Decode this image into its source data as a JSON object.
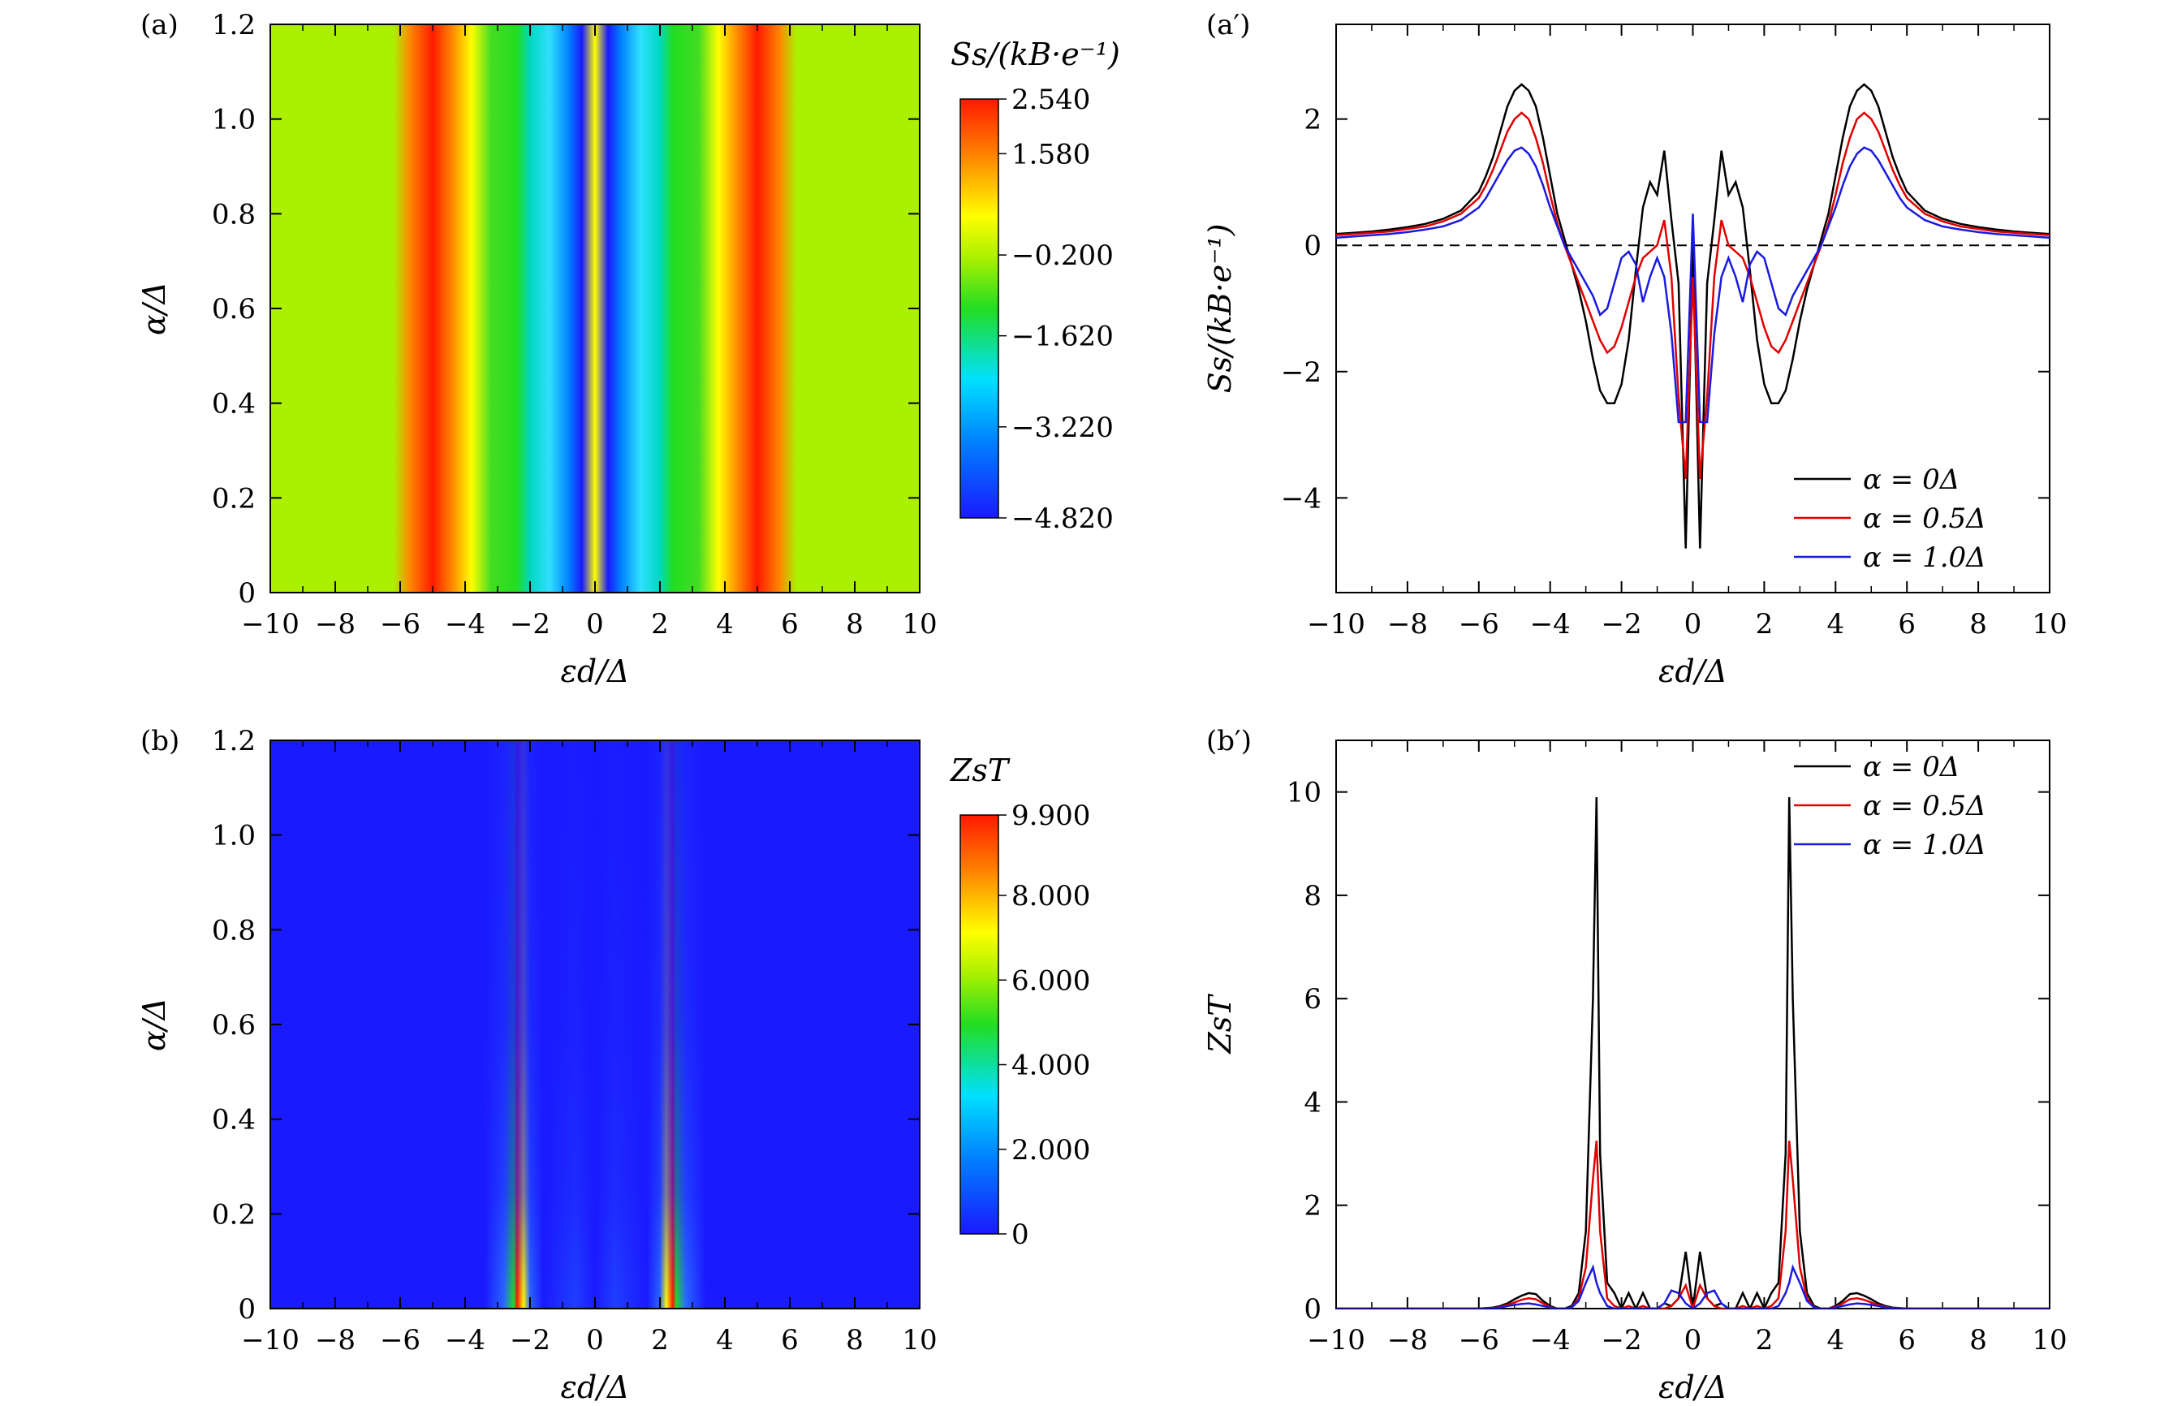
{
  "chart_data": [
    {
      "id": "a",
      "type": "heatmap",
      "panel_label": "(a)",
      "xlabel": "εd/Δ",
      "ylabel": "α/Δ",
      "colorbar_label": "Ss/(kB·e⁻¹)",
      "x_ticks": [
        "−10",
        "−8",
        "−6",
        "−4",
        "−2",
        "0",
        "2",
        "4",
        "6",
        "8",
        "10"
      ],
      "y_ticks": [
        "0",
        "0.2",
        "0.4",
        "0.6",
        "0.8",
        "1.0",
        "1.2"
      ],
      "xlim": [
        -10,
        10
      ],
      "ylim": [
        0,
        1.2
      ],
      "colorbar_ticks": [
        "2.540",
        "1.580",
        "−0.200",
        "−1.620",
        "−3.220",
        "−4.820"
      ],
      "colorbar_range": [
        -4.82,
        2.54
      ],
      "colormap": [
        "#1a1aff",
        "#00e0ff",
        "#22dd22",
        "#aaf000",
        "#ffff00",
        "#ff8800",
        "#ff1a00"
      ]
    },
    {
      "id": "a_prime",
      "type": "line",
      "panel_label": "(a′)",
      "xlabel": "εd/Δ",
      "ylabel": "Ss/(kB·e⁻¹)",
      "x_ticks": [
        "−10",
        "−8",
        "−6",
        "−4",
        "−2",
        "0",
        "2",
        "4",
        "6",
        "8",
        "10"
      ],
      "y_ticks": [
        "−4",
        "−2",
        "0",
        "2"
      ],
      "xlim": [
        -10,
        10
      ],
      "ylim": [
        -5.5,
        3.5
      ],
      "reference_line": {
        "y": 0,
        "style": "dashed"
      },
      "legend_position": "bottom-right",
      "x": [
        0,
        0.2,
        0.4,
        0.6,
        0.8,
        1.0,
        1.2,
        1.4,
        1.6,
        1.8,
        2.0,
        2.2,
        2.4,
        2.6,
        2.8,
        3.0,
        3.2,
        3.4,
        3.6,
        3.8,
        4.0,
        4.2,
        4.4,
        4.6,
        4.8,
        5.0,
        5.2,
        5.4,
        5.6,
        5.8,
        6.0,
        6.5,
        7.0,
        7.5,
        8.0,
        8.5,
        9.0,
        9.5,
        10.0
      ],
      "series": [
        {
          "name": "α = 0Δ",
          "color": "#000000",
          "values": [
            0.0,
            -4.8,
            -0.6,
            0.4,
            1.5,
            0.8,
            1.0,
            0.6,
            -0.4,
            -1.5,
            -2.2,
            -2.5,
            -2.5,
            -2.3,
            -1.8,
            -1.2,
            -0.7,
            -0.3,
            0.1,
            0.5,
            1.1,
            1.7,
            2.2,
            2.45,
            2.55,
            2.45,
            2.2,
            1.8,
            1.4,
            1.1,
            0.85,
            0.55,
            0.42,
            0.34,
            0.29,
            0.25,
            0.22,
            0.2,
            0.18
          ]
        },
        {
          "name": "α = 0.5Δ",
          "color": "#e00000",
          "values": [
            -0.5,
            -3.7,
            -2.4,
            -0.5,
            0.4,
            0.0,
            -0.1,
            -0.2,
            -0.5,
            -0.9,
            -1.3,
            -1.6,
            -1.7,
            -1.5,
            -1.2,
            -0.9,
            -0.6,
            -0.3,
            0.0,
            0.35,
            0.8,
            1.3,
            1.7,
            2.0,
            2.1,
            2.0,
            1.8,
            1.5,
            1.2,
            0.95,
            0.75,
            0.5,
            0.38,
            0.3,
            0.26,
            0.22,
            0.2,
            0.18,
            0.16
          ]
        },
        {
          "name": "α = 1.0Δ",
          "color": "#1a1ae0",
          "values": [
            0.5,
            -2.8,
            -2.8,
            -1.4,
            -0.5,
            -0.2,
            -0.5,
            -0.9,
            -0.3,
            -0.1,
            -0.2,
            -0.6,
            -1.0,
            -1.1,
            -0.8,
            -0.6,
            -0.4,
            -0.2,
            0.0,
            0.3,
            0.6,
            0.95,
            1.25,
            1.45,
            1.55,
            1.5,
            1.35,
            1.15,
            0.95,
            0.75,
            0.6,
            0.4,
            0.3,
            0.25,
            0.21,
            0.18,
            0.16,
            0.14,
            0.12
          ]
        }
      ]
    },
    {
      "id": "b",
      "type": "heatmap",
      "panel_label": "(b)",
      "xlabel": "εd/Δ",
      "ylabel": "α/Δ",
      "colorbar_label": "ZsT",
      "x_ticks": [
        "−10",
        "−8",
        "−6",
        "−4",
        "−2",
        "0",
        "2",
        "4",
        "6",
        "8",
        "10"
      ],
      "y_ticks": [
        "0",
        "0.2",
        "0.4",
        "0.6",
        "0.8",
        "1.0",
        "1.2"
      ],
      "xlim": [
        -10,
        10
      ],
      "ylim": [
        0,
        1.2
      ],
      "colorbar_ticks": [
        "9.900",
        "8.000",
        "6.000",
        "4.000",
        "2.000",
        "0"
      ],
      "colorbar_range": [
        0,
        9.9
      ],
      "colormap": [
        "#1a1aff",
        "#00e0ff",
        "#22dd22",
        "#aaf000",
        "#ffff00",
        "#ff8800",
        "#ff1a00"
      ]
    },
    {
      "id": "b_prime",
      "type": "line",
      "panel_label": "(b′)",
      "xlabel": "εd/Δ",
      "ylabel": "ZsT",
      "x_ticks": [
        "−10",
        "−8",
        "−6",
        "−4",
        "−2",
        "0",
        "2",
        "4",
        "6",
        "8",
        "10"
      ],
      "y_ticks": [
        "0",
        "2",
        "4",
        "6",
        "8",
        "10"
      ],
      "xlim": [
        -10,
        10
      ],
      "ylim": [
        0,
        11
      ],
      "legend_position": "top-right",
      "x": [
        0,
        0.2,
        0.4,
        0.6,
        0.8,
        1.0,
        1.2,
        1.4,
        1.6,
        1.8,
        2.0,
        2.2,
        2.4,
        2.6,
        2.7,
        2.8,
        3.0,
        3.2,
        3.4,
        3.6,
        3.8,
        4.0,
        4.2,
        4.4,
        4.6,
        4.8,
        5.0,
        5.2,
        5.4,
        5.6,
        6.0,
        7.0,
        8.0,
        9.0,
        10.0
      ],
      "series": [
        {
          "name": "α = 0Δ",
          "color": "#000000",
          "values": [
            0.0,
            1.1,
            0.2,
            0.05,
            0.1,
            0.0,
            0.0,
            0.3,
            0.0,
            0.3,
            0.0,
            0.3,
            0.5,
            3.0,
            9.9,
            6.0,
            1.5,
            0.3,
            0.05,
            0.0,
            0.0,
            0.05,
            0.15,
            0.28,
            0.3,
            0.25,
            0.18,
            0.1,
            0.05,
            0.02,
            0.0,
            0.0,
            0.0,
            0.0,
            0.0
          ]
        },
        {
          "name": "α = 0.5Δ",
          "color": "#e00000",
          "values": [
            0.0,
            0.45,
            0.2,
            0.05,
            0.0,
            0.0,
            0.0,
            0.05,
            0.0,
            0.05,
            0.0,
            0.05,
            0.2,
            1.5,
            3.25,
            2.5,
            0.8,
            0.2,
            0.02,
            0.0,
            0.0,
            0.03,
            0.1,
            0.18,
            0.2,
            0.17,
            0.12,
            0.07,
            0.03,
            0.01,
            0.0,
            0.0,
            0.0,
            0.0,
            0.0
          ]
        },
        {
          "name": "α = 1.0Δ",
          "color": "#1a1ae0",
          "values": [
            0.0,
            0.1,
            0.3,
            0.35,
            0.1,
            0.0,
            0.0,
            0.0,
            0.0,
            0.0,
            0.0,
            0.0,
            0.05,
            0.3,
            0.5,
            0.8,
            0.5,
            0.15,
            0.02,
            0.0,
            0.0,
            0.02,
            0.05,
            0.08,
            0.1,
            0.09,
            0.07,
            0.05,
            0.02,
            0.01,
            0.0,
            0.0,
            0.0,
            0.0,
            0.0
          ]
        }
      ]
    }
  ]
}
